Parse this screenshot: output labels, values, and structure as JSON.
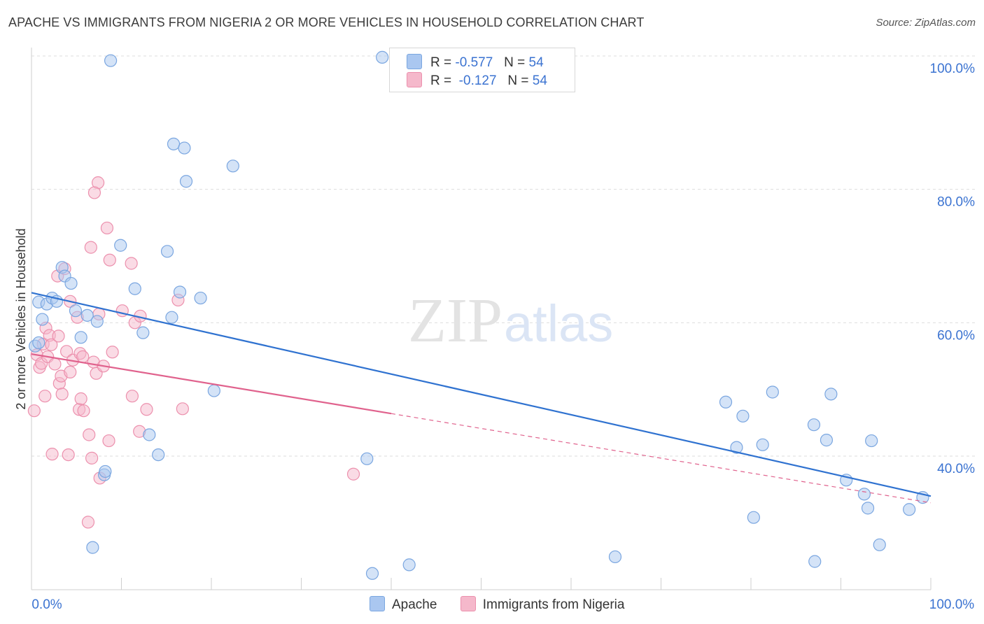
{
  "header": {
    "title": "APACHE VS IMMIGRANTS FROM NIGERIA 2 OR MORE VEHICLES IN HOUSEHOLD CORRELATION CHART",
    "source": "Source: ZipAtlas.com"
  },
  "watermark": {
    "zip": "ZIP",
    "atlas": "atlas"
  },
  "stats_legend": {
    "r_label": "R =",
    "n_label": "N =",
    "rows": [
      {
        "r": "-0.577",
        "n": "54",
        "color": "#aac7f0"
      },
      {
        "r": "-0.127",
        "n": "54",
        "color": "#f5b8cb"
      }
    ]
  },
  "colors": {
    "apache_fill": "#aac7f0",
    "apache_stroke": "#7aa6e0",
    "apache_line": "#2f72d0",
    "nigeria_fill": "#f5b8cb",
    "nigeria_stroke": "#ec90ad",
    "nigeria_line": "#e0628d",
    "tick_label": "#3b73d1",
    "grid": "#dddddd"
  },
  "chart_data": {
    "type": "scatter",
    "title": "APACHE VS IMMIGRANTS FROM NIGERIA 2 OR MORE VEHICLES IN HOUSEHOLD CORRELATION CHART",
    "xlabel": "",
    "ylabel": "2 or more Vehicles in Household",
    "xlim": [
      0,
      100
    ],
    "ylim": [
      22,
      100
    ],
    "x_tick_labels": [
      "0.0%",
      "100.0%"
    ],
    "y_ticks": [
      40,
      60,
      80,
      100
    ],
    "y_tick_labels": [
      "40.0%",
      "60.0%",
      "80.0%",
      "100.0%"
    ],
    "grid": true,
    "legend_position": "bottom",
    "series": [
      {
        "name": "Apache",
        "r": -0.577,
        "n": 54,
        "trend": {
          "x": [
            0,
            100
          ],
          "y": [
            64.5,
            34.0
          ],
          "solid_until": 100
        },
        "points": [
          [
            0.8,
            63.1
          ],
          [
            1.2,
            60.5
          ],
          [
            1.7,
            62.8
          ],
          [
            2.3,
            63.7
          ],
          [
            2.8,
            63.2
          ],
          [
            3.4,
            68.3
          ],
          [
            3.7,
            67.0
          ],
          [
            4.4,
            65.9
          ],
          [
            4.9,
            61.8
          ],
          [
            5.5,
            57.8
          ],
          [
            6.2,
            61.1
          ],
          [
            7.3,
            60.2
          ],
          [
            8.1,
            37.2
          ],
          [
            8.2,
            37.7
          ],
          [
            6.8,
            26.3
          ],
          [
            8.8,
            99.3
          ],
          [
            9.9,
            71.6
          ],
          [
            11.5,
            65.1
          ],
          [
            12.4,
            58.5
          ],
          [
            13.1,
            43.2
          ],
          [
            14.1,
            40.2
          ],
          [
            15.1,
            70.7
          ],
          [
            15.6,
            60.8
          ],
          [
            15.8,
            86.8
          ],
          [
            16.5,
            64.6
          ],
          [
            17.0,
            86.2
          ],
          [
            17.2,
            81.2
          ],
          [
            18.8,
            63.7
          ],
          [
            20.3,
            49.8
          ],
          [
            22.4,
            83.5
          ],
          [
            37.3,
            39.6
          ],
          [
            37.9,
            22.4
          ],
          [
            39.0,
            99.8
          ],
          [
            42.0,
            23.7
          ],
          [
            64.9,
            24.9
          ],
          [
            77.2,
            48.1
          ],
          [
            78.4,
            41.3
          ],
          [
            79.1,
            46.0
          ],
          [
            80.3,
            30.8
          ],
          [
            81.3,
            41.7
          ],
          [
            82.4,
            49.6
          ],
          [
            87.0,
            44.7
          ],
          [
            87.1,
            24.2
          ],
          [
            88.4,
            42.4
          ],
          [
            88.9,
            49.3
          ],
          [
            90.6,
            36.4
          ],
          [
            92.6,
            34.3
          ],
          [
            93.0,
            32.2
          ],
          [
            93.4,
            42.3
          ],
          [
            94.3,
            26.7
          ],
          [
            97.6,
            32.0
          ],
          [
            99.1,
            33.8
          ],
          [
            0.4,
            56.5
          ],
          [
            0.8,
            57.0
          ]
        ]
      },
      {
        "name": "Immigrants from Nigeria",
        "r": -0.127,
        "n": 54,
        "trend": {
          "x": [
            0,
            100
          ],
          "y": [
            55.3,
            33.0
          ],
          "solid_until": 40
        },
        "points": [
          [
            0.3,
            46.8
          ],
          [
            0.6,
            55.2
          ],
          [
            0.9,
            53.3
          ],
          [
            1.1,
            53.9
          ],
          [
            1.3,
            56.8
          ],
          [
            1.5,
            49.0
          ],
          [
            1.6,
            59.2
          ],
          [
            1.8,
            54.9
          ],
          [
            2.0,
            58.1
          ],
          [
            2.2,
            56.7
          ],
          [
            2.3,
            40.3
          ],
          [
            2.6,
            53.8
          ],
          [
            2.9,
            67.0
          ],
          [
            3.0,
            58.0
          ],
          [
            3.1,
            50.9
          ],
          [
            3.3,
            52.0
          ],
          [
            3.4,
            49.3
          ],
          [
            3.7,
            68.1
          ],
          [
            3.9,
            55.7
          ],
          [
            4.1,
            40.2
          ],
          [
            4.3,
            52.6
          ],
          [
            4.3,
            63.2
          ],
          [
            4.6,
            54.4
          ],
          [
            5.1,
            60.8
          ],
          [
            5.3,
            47.0
          ],
          [
            5.4,
            55.4
          ],
          [
            5.5,
            48.6
          ],
          [
            5.7,
            54.9
          ],
          [
            5.8,
            46.8
          ],
          [
            6.3,
            30.1
          ],
          [
            6.4,
            43.2
          ],
          [
            6.6,
            71.3
          ],
          [
            6.7,
            39.7
          ],
          [
            6.9,
            54.1
          ],
          [
            7.2,
            52.4
          ],
          [
            7.4,
            81.0
          ],
          [
            7.5,
            61.3
          ],
          [
            7.6,
            36.7
          ],
          [
            7.0,
            79.5
          ],
          [
            8.0,
            53.5
          ],
          [
            8.4,
            74.2
          ],
          [
            8.6,
            42.3
          ],
          [
            8.7,
            69.4
          ],
          [
            9.0,
            55.6
          ],
          [
            11.1,
            68.9
          ],
          [
            11.2,
            49.0
          ],
          [
            11.5,
            60.0
          ],
          [
            12.0,
            43.7
          ],
          [
            10.1,
            61.8
          ],
          [
            12.1,
            61.0
          ],
          [
            12.8,
            47.0
          ],
          [
            16.3,
            63.4
          ],
          [
            16.8,
            47.1
          ],
          [
            35.8,
            37.3
          ]
        ]
      }
    ]
  }
}
